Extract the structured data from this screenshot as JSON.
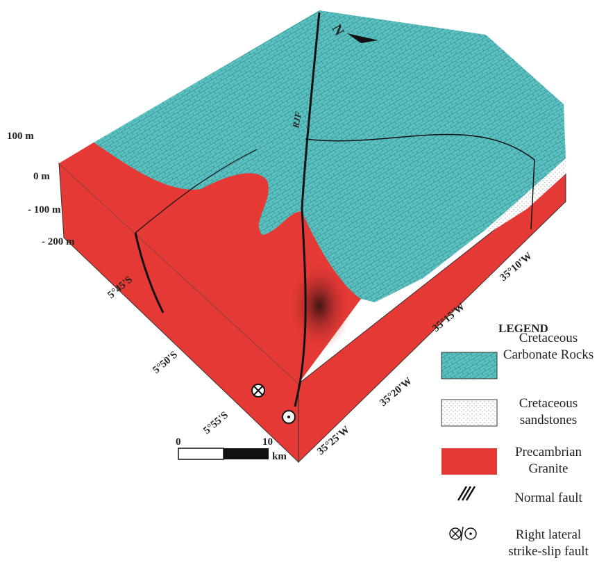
{
  "north": "N",
  "fault_label": "RJF",
  "depth_labels": [
    "100 m",
    "0 m",
    "- 100 m",
    "- 200 m"
  ],
  "latitude_labels": [
    "5°45'S",
    "5°50'S",
    "5°55'S"
  ],
  "longitude_labels": [
    "35°10'W",
    "35°15'W",
    "35°20'W",
    "35°25'W"
  ],
  "scale": {
    "labels": [
      "0",
      "10"
    ],
    "unit": "km"
  },
  "legend": {
    "title": "LEGEND",
    "items": [
      {
        "lines": [
          "Cretaceous",
          "Carbonate Rocks"
        ]
      },
      {
        "lines": [
          "Cretaceous",
          "sandstones"
        ]
      },
      {
        "lines": [
          "Precambrian",
          "Granite"
        ]
      },
      {
        "lines": [
          "Normal fault"
        ]
      },
      {
        "lines": [
          "Right lateral",
          "strike-slip fault"
        ]
      }
    ]
  }
}
